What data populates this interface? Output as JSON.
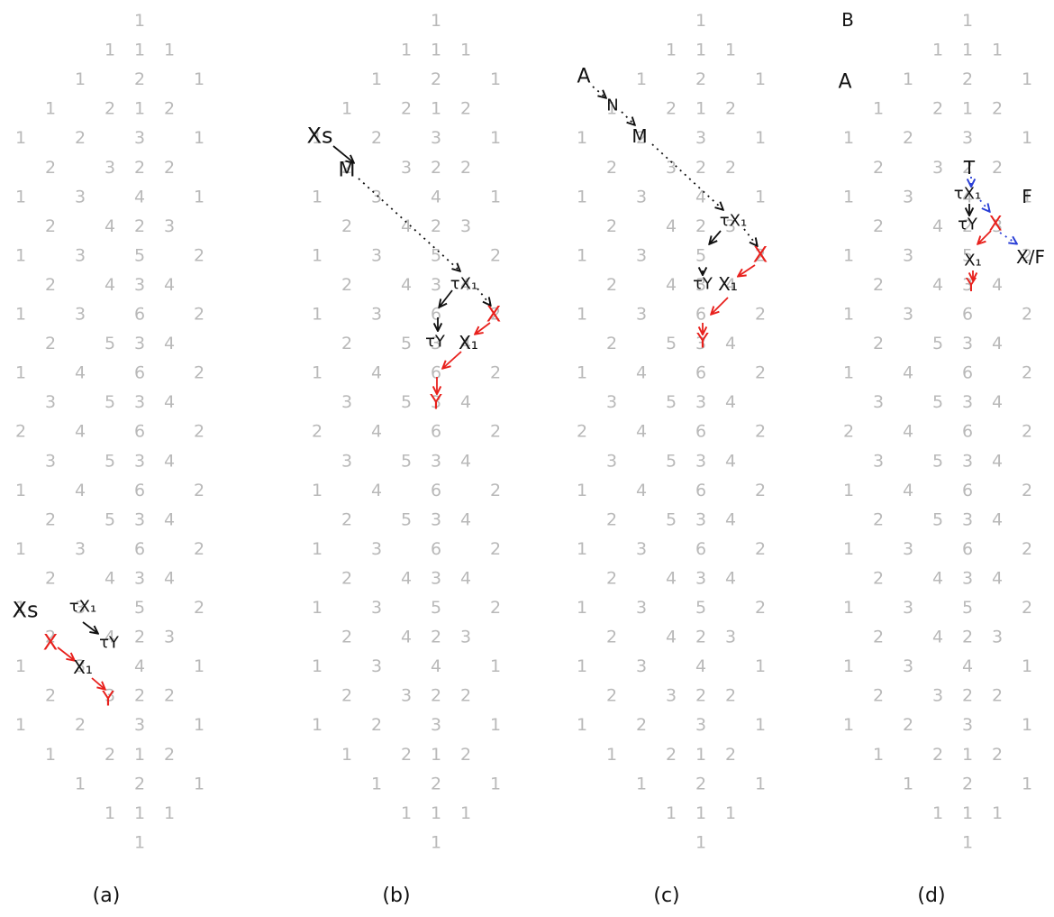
{
  "pattern_rows": [
    [
      "1"
    ],
    [
      "1",
      "1",
      "1"
    ],
    [
      "1",
      "2",
      "1"
    ],
    [
      "1",
      "2",
      "1",
      "2"
    ],
    [
      "1",
      "2",
      "3",
      "1"
    ],
    [
      "2",
      "3",
      "2",
      "2"
    ],
    [
      "1",
      "3",
      "4",
      "1"
    ],
    [
      "2",
      "4",
      "2",
      "3"
    ],
    [
      "1",
      "3",
      "5",
      "2"
    ],
    [
      "2",
      "4",
      "3",
      "4"
    ],
    [
      "1",
      "3",
      "6",
      "2"
    ],
    [
      "2",
      "5",
      "3",
      "4"
    ],
    [
      "1",
      "4",
      "6",
      "2"
    ],
    [
      "3",
      "5",
      "3",
      "4"
    ],
    [
      "2",
      "4",
      "6",
      "2"
    ],
    [
      "3",
      "5",
      "3",
      "4"
    ],
    [
      "1",
      "4",
      "6",
      "2"
    ],
    [
      "2",
      "5",
      "3",
      "4"
    ],
    [
      "1",
      "3",
      "6",
      "2"
    ],
    [
      "2",
      "4",
      "3",
      "4"
    ],
    [
      "1",
      "3",
      "5",
      "2"
    ],
    [
      "2",
      "4",
      "2",
      "3"
    ],
    [
      "1",
      "3",
      "4",
      "1"
    ],
    [
      "2",
      "3",
      "2",
      "2"
    ],
    [
      "1",
      "2",
      "3",
      "1"
    ],
    [
      "1",
      "2",
      "1",
      "2"
    ],
    [
      "1",
      "2",
      "1"
    ],
    [
      "1",
      "1",
      "1"
    ],
    [
      "1"
    ]
  ],
  "panels": [
    {
      "caption": "(a)",
      "labels": [
        {
          "id": "xs",
          "text": "Xs",
          "color": "black"
        },
        {
          "id": "tx1",
          "text": "τX₁",
          "color": "black"
        },
        {
          "id": "ty",
          "text": "τY",
          "color": "black"
        },
        {
          "id": "x",
          "text": "X",
          "color": "red"
        },
        {
          "id": "x1",
          "text": "X₁",
          "color": "black"
        },
        {
          "id": "y",
          "text": "Y",
          "color": "red"
        }
      ]
    },
    {
      "caption": "(b)",
      "labels": [
        {
          "id": "xs",
          "text": "Xs",
          "color": "black"
        },
        {
          "id": "m",
          "text": "M",
          "color": "black"
        },
        {
          "id": "tx1",
          "text": "τX₁",
          "color": "black"
        },
        {
          "id": "ty",
          "text": "τY",
          "color": "black"
        },
        {
          "id": "x",
          "text": "X",
          "color": "red"
        },
        {
          "id": "x1",
          "text": "X₁",
          "color": "black"
        },
        {
          "id": "y",
          "text": "Y",
          "color": "red"
        }
      ]
    },
    {
      "caption": "(c)",
      "labels": [
        {
          "id": "a",
          "text": "A",
          "color": "black"
        },
        {
          "id": "n",
          "text": "N",
          "color": "black"
        },
        {
          "id": "m",
          "text": "M",
          "color": "black"
        },
        {
          "id": "tx1",
          "text": "τX₁",
          "color": "black"
        },
        {
          "id": "ty",
          "text": "τY",
          "color": "black"
        },
        {
          "id": "x",
          "text": "X",
          "color": "red"
        },
        {
          "id": "x1",
          "text": "X₁",
          "color": "black"
        },
        {
          "id": "y",
          "text": "Y",
          "color": "red"
        }
      ]
    },
    {
      "caption": "(d)",
      "labels": [
        {
          "id": "b",
          "text": "B",
          "color": "black"
        },
        {
          "id": "a",
          "text": "A",
          "color": "black"
        },
        {
          "id": "t",
          "text": "T",
          "color": "black"
        },
        {
          "id": "tx1",
          "text": "τX₁",
          "color": "black"
        },
        {
          "id": "ty",
          "text": "τY",
          "color": "black"
        },
        {
          "id": "f",
          "text": "F",
          "color": "black"
        },
        {
          "id": "x",
          "text": "X",
          "color": "red"
        },
        {
          "id": "xf",
          "text": "X/F",
          "color": "black"
        },
        {
          "id": "x1",
          "text": "X₁",
          "color": "black"
        },
        {
          "id": "y",
          "text": "Y",
          "color": "red"
        }
      ]
    }
  ],
  "colors": {
    "numbers": "#b9b9b9",
    "labels": "#111111",
    "highlight": "#e8201c",
    "dotted_blue": "#2a3fd6"
  }
}
